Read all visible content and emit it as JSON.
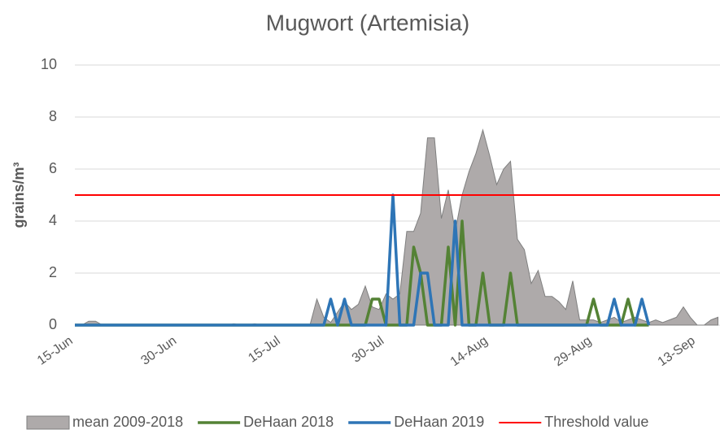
{
  "chart_data": {
    "type": "line",
    "title": "Mugwort (Artemisia)",
    "y_label": "grains/m³",
    "categories": [
      "15-Jun",
      null,
      null,
      null,
      null,
      null,
      null,
      null,
      null,
      null,
      null,
      null,
      null,
      null,
      null,
      "30-Jun",
      null,
      null,
      null,
      null,
      null,
      null,
      null,
      null,
      null,
      null,
      null,
      null,
      null,
      null,
      "15-Jul",
      null,
      null,
      null,
      null,
      null,
      null,
      null,
      null,
      null,
      null,
      null,
      null,
      null,
      null,
      "30-Jul",
      null,
      null,
      null,
      null,
      null,
      null,
      null,
      null,
      null,
      null,
      null,
      null,
      null,
      null,
      "14-Aug",
      null,
      null,
      null,
      null,
      null,
      null,
      null,
      null,
      null,
      null,
      null,
      null,
      null,
      null,
      "29-Aug",
      null,
      null,
      null,
      null,
      null,
      null,
      null,
      null,
      null,
      null,
      null,
      null,
      null,
      null,
      "13-Sep",
      null,
      null,
      null
    ],
    "series": [
      {
        "name": "mean 2009-2018",
        "kind": "area",
        "color": "#aeaaaa",
        "values": [
          0,
          0,
          0.15,
          0.15,
          0,
          0,
          0,
          0,
          0,
          0,
          0,
          0,
          0,
          0,
          0,
          0,
          0,
          0,
          0,
          0,
          0,
          0,
          0,
          0.05,
          0,
          0,
          0.05,
          0,
          0,
          0,
          0,
          0,
          0,
          0,
          0,
          1.0,
          0.3,
          0.1,
          0.5,
          0.9,
          0.6,
          0.8,
          1.5,
          0.7,
          0.6,
          1.2,
          1.0,
          1.2,
          3.6,
          3.6,
          4.3,
          7.2,
          7.2,
          4.1,
          5.2,
          3.6,
          5.0,
          5.9,
          6.6,
          7.5,
          6.5,
          5.4,
          6.0,
          6.3,
          3.3,
          2.9,
          1.6,
          2.1,
          1.1,
          1.1,
          0.9,
          0.6,
          1.7,
          0.2,
          0.2,
          0.2,
          0.1,
          0.2,
          0.3,
          0.1,
          0.2,
          0.3,
          0.2,
          0.1,
          0.2,
          0.1,
          0.2,
          0.3,
          0.7,
          0.3,
          0,
          0,
          0.2,
          0.3
        ]
      },
      {
        "name": "DeHaan 2018",
        "kind": "line",
        "color": "#548235",
        "values": [
          0,
          0,
          0,
          0,
          0,
          0,
          0,
          0,
          0,
          0,
          0,
          0,
          0,
          0,
          0,
          0,
          0,
          0,
          0,
          0,
          0,
          0,
          0,
          0,
          0,
          0,
          0,
          0,
          0,
          0,
          0,
          0,
          0,
          0,
          0,
          0,
          0,
          0,
          0,
          0,
          0,
          0,
          0,
          1,
          1,
          0,
          0,
          0,
          0,
          3,
          2,
          0,
          0,
          0,
          3,
          0,
          4,
          0,
          0,
          2,
          0,
          0,
          0,
          2,
          0,
          0,
          0,
          0,
          0,
          0,
          0,
          0,
          0,
          0,
          0,
          1,
          0,
          0,
          0,
          0,
          1,
          0,
          0,
          0,
          null,
          null,
          null,
          null,
          null,
          null,
          null,
          null,
          null,
          null
        ]
      },
      {
        "name": "DeHaan 2019",
        "kind": "line",
        "color": "#2e75b6",
        "values": [
          0,
          0,
          0,
          0,
          0,
          0,
          0,
          0,
          0,
          0,
          0,
          0,
          0,
          0,
          0,
          0,
          0,
          0,
          0,
          0,
          0,
          0,
          0,
          0,
          0,
          0,
          0,
          0,
          0,
          0,
          0,
          0,
          0,
          0,
          0,
          0,
          0,
          1,
          0,
          1,
          0,
          0,
          0,
          0,
          0,
          0,
          5,
          0,
          0,
          0,
          2,
          2,
          0,
          0,
          0,
          4,
          0,
          0,
          0,
          0,
          0,
          0,
          0,
          0,
          0,
          0,
          0,
          0,
          0,
          0,
          0,
          0,
          0,
          0,
          0,
          0,
          0,
          0,
          1,
          0,
          0,
          0,
          1,
          0,
          null,
          null,
          null,
          null,
          null,
          null,
          null,
          null,
          null,
          null
        ]
      }
    ],
    "threshold": {
      "name": "Threshold value",
      "value": 5,
      "color": "#ff0000"
    },
    "ylim": [
      0,
      10
    ],
    "yticks": [
      0,
      2,
      4,
      6,
      8,
      10
    ],
    "grid": true,
    "legend": "bottom"
  }
}
